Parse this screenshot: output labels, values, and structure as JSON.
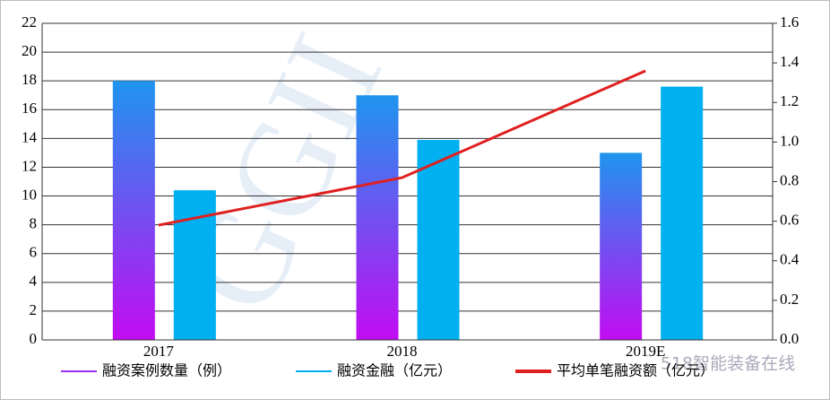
{
  "chart_data": {
    "type": "bar",
    "categories": [
      "2017",
      "2018",
      "2019E"
    ],
    "series": [
      {
        "name": "融资案例数量（例）",
        "color": "#9b30f0",
        "gradient": [
          "#1f95ef",
          "#c20cf2"
        ],
        "values": [
          18,
          17,
          13
        ]
      },
      {
        "name": "融资金融（亿元）",
        "color": "#00b0f0",
        "values": [
          10.4,
          13.9,
          17.6
        ]
      },
      {
        "name": "平均单笔融资额（亿元）",
        "color": "#e02020",
        "type": "line",
        "axis": "y2",
        "values": [
          0.58,
          0.82,
          1.36
        ]
      }
    ],
    "ylim": [
      0,
      22
    ],
    "yticks": [
      0,
      2,
      4,
      6,
      8,
      10,
      12,
      14,
      16,
      18,
      20,
      22
    ],
    "y2lim": [
      0,
      1.6
    ],
    "y2ticks": [
      {
        "value": 0,
        "label": "0.0"
      },
      0.2,
      0.4,
      0.6,
      0.8,
      {
        "value": 1,
        "label": "1.0"
      },
      1.2,
      1.4,
      1.6
    ],
    "grid": true,
    "legend": "bottom"
  },
  "watermarks": [
    "GGII",
    "518智能装备在线"
  ]
}
